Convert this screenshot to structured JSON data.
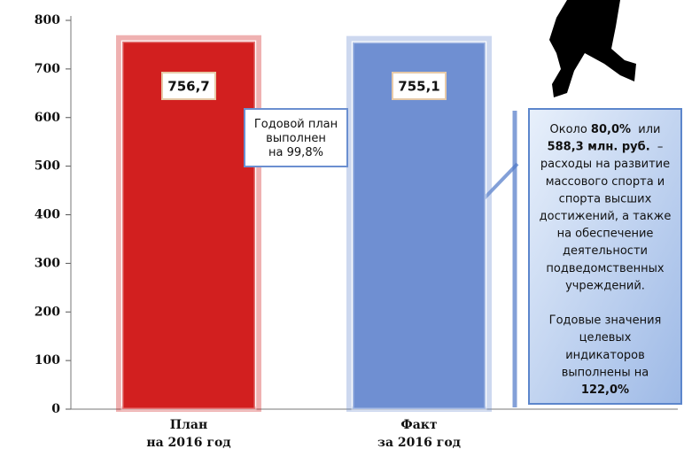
{
  "chart_data": {
    "type": "bar",
    "categories": [
      [
        "План",
        "на 2016 год"
      ],
      [
        "Факт",
        "за 2016 год"
      ]
    ],
    "values": [
      756.7,
      755.1
    ],
    "value_labels": [
      "756,7",
      "755,1"
    ],
    "colors": [
      "#d21f1f",
      "#6f8fd2"
    ],
    "ylim": [
      0,
      800
    ],
    "yticks": [
      0,
      100,
      200,
      300,
      400,
      500,
      600,
      700,
      800
    ],
    "annotations": [
      {
        "lines": [
          [
            {
              "text": "Годовой план",
              "bold": false
            }
          ],
          [
            {
              "text": "выполнен",
              "bold": false
            }
          ],
          [
            {
              "text": "на 99,8%",
              "bold": false
            }
          ]
        ]
      },
      {
        "lines": [
          [
            {
              "text": "Около ",
              "bold": false
            },
            {
              "text": "80,0%",
              "bold": true
            },
            {
              "text": "  или",
              "bold": false
            }
          ],
          [
            {
              "text": "588,3 млн. руб.",
              "bold": true
            },
            {
              "text": "  –",
              "bold": false
            }
          ],
          [
            {
              "text": "расходы на развитие",
              "bold": false
            }
          ],
          [
            {
              "text": "массового спорта и",
              "bold": false
            }
          ],
          [
            {
              "text": "спорта высших",
              "bold": false
            }
          ],
          [
            {
              "text": "достижений, а также",
              "bold": false
            }
          ],
          [
            {
              "text": "на обеспечение",
              "bold": false
            }
          ],
          [
            {
              "text": "деятельности",
              "bold": false
            }
          ],
          [
            {
              "text": "подведомственных",
              "bold": false
            }
          ],
          [
            {
              "text": "учреждений.",
              "bold": false
            }
          ],
          [],
          [
            {
              "text": "Годовые значения",
              "bold": false
            }
          ],
          [
            {
              "text": "целевых",
              "bold": false
            }
          ],
          [
            {
              "text": "индикаторов",
              "bold": false
            }
          ],
          [
            {
              "text": "выполнены на",
              "bold": false
            }
          ],
          [
            {
              "text": "122,0%",
              "bold": true
            }
          ]
        ]
      }
    ]
  }
}
